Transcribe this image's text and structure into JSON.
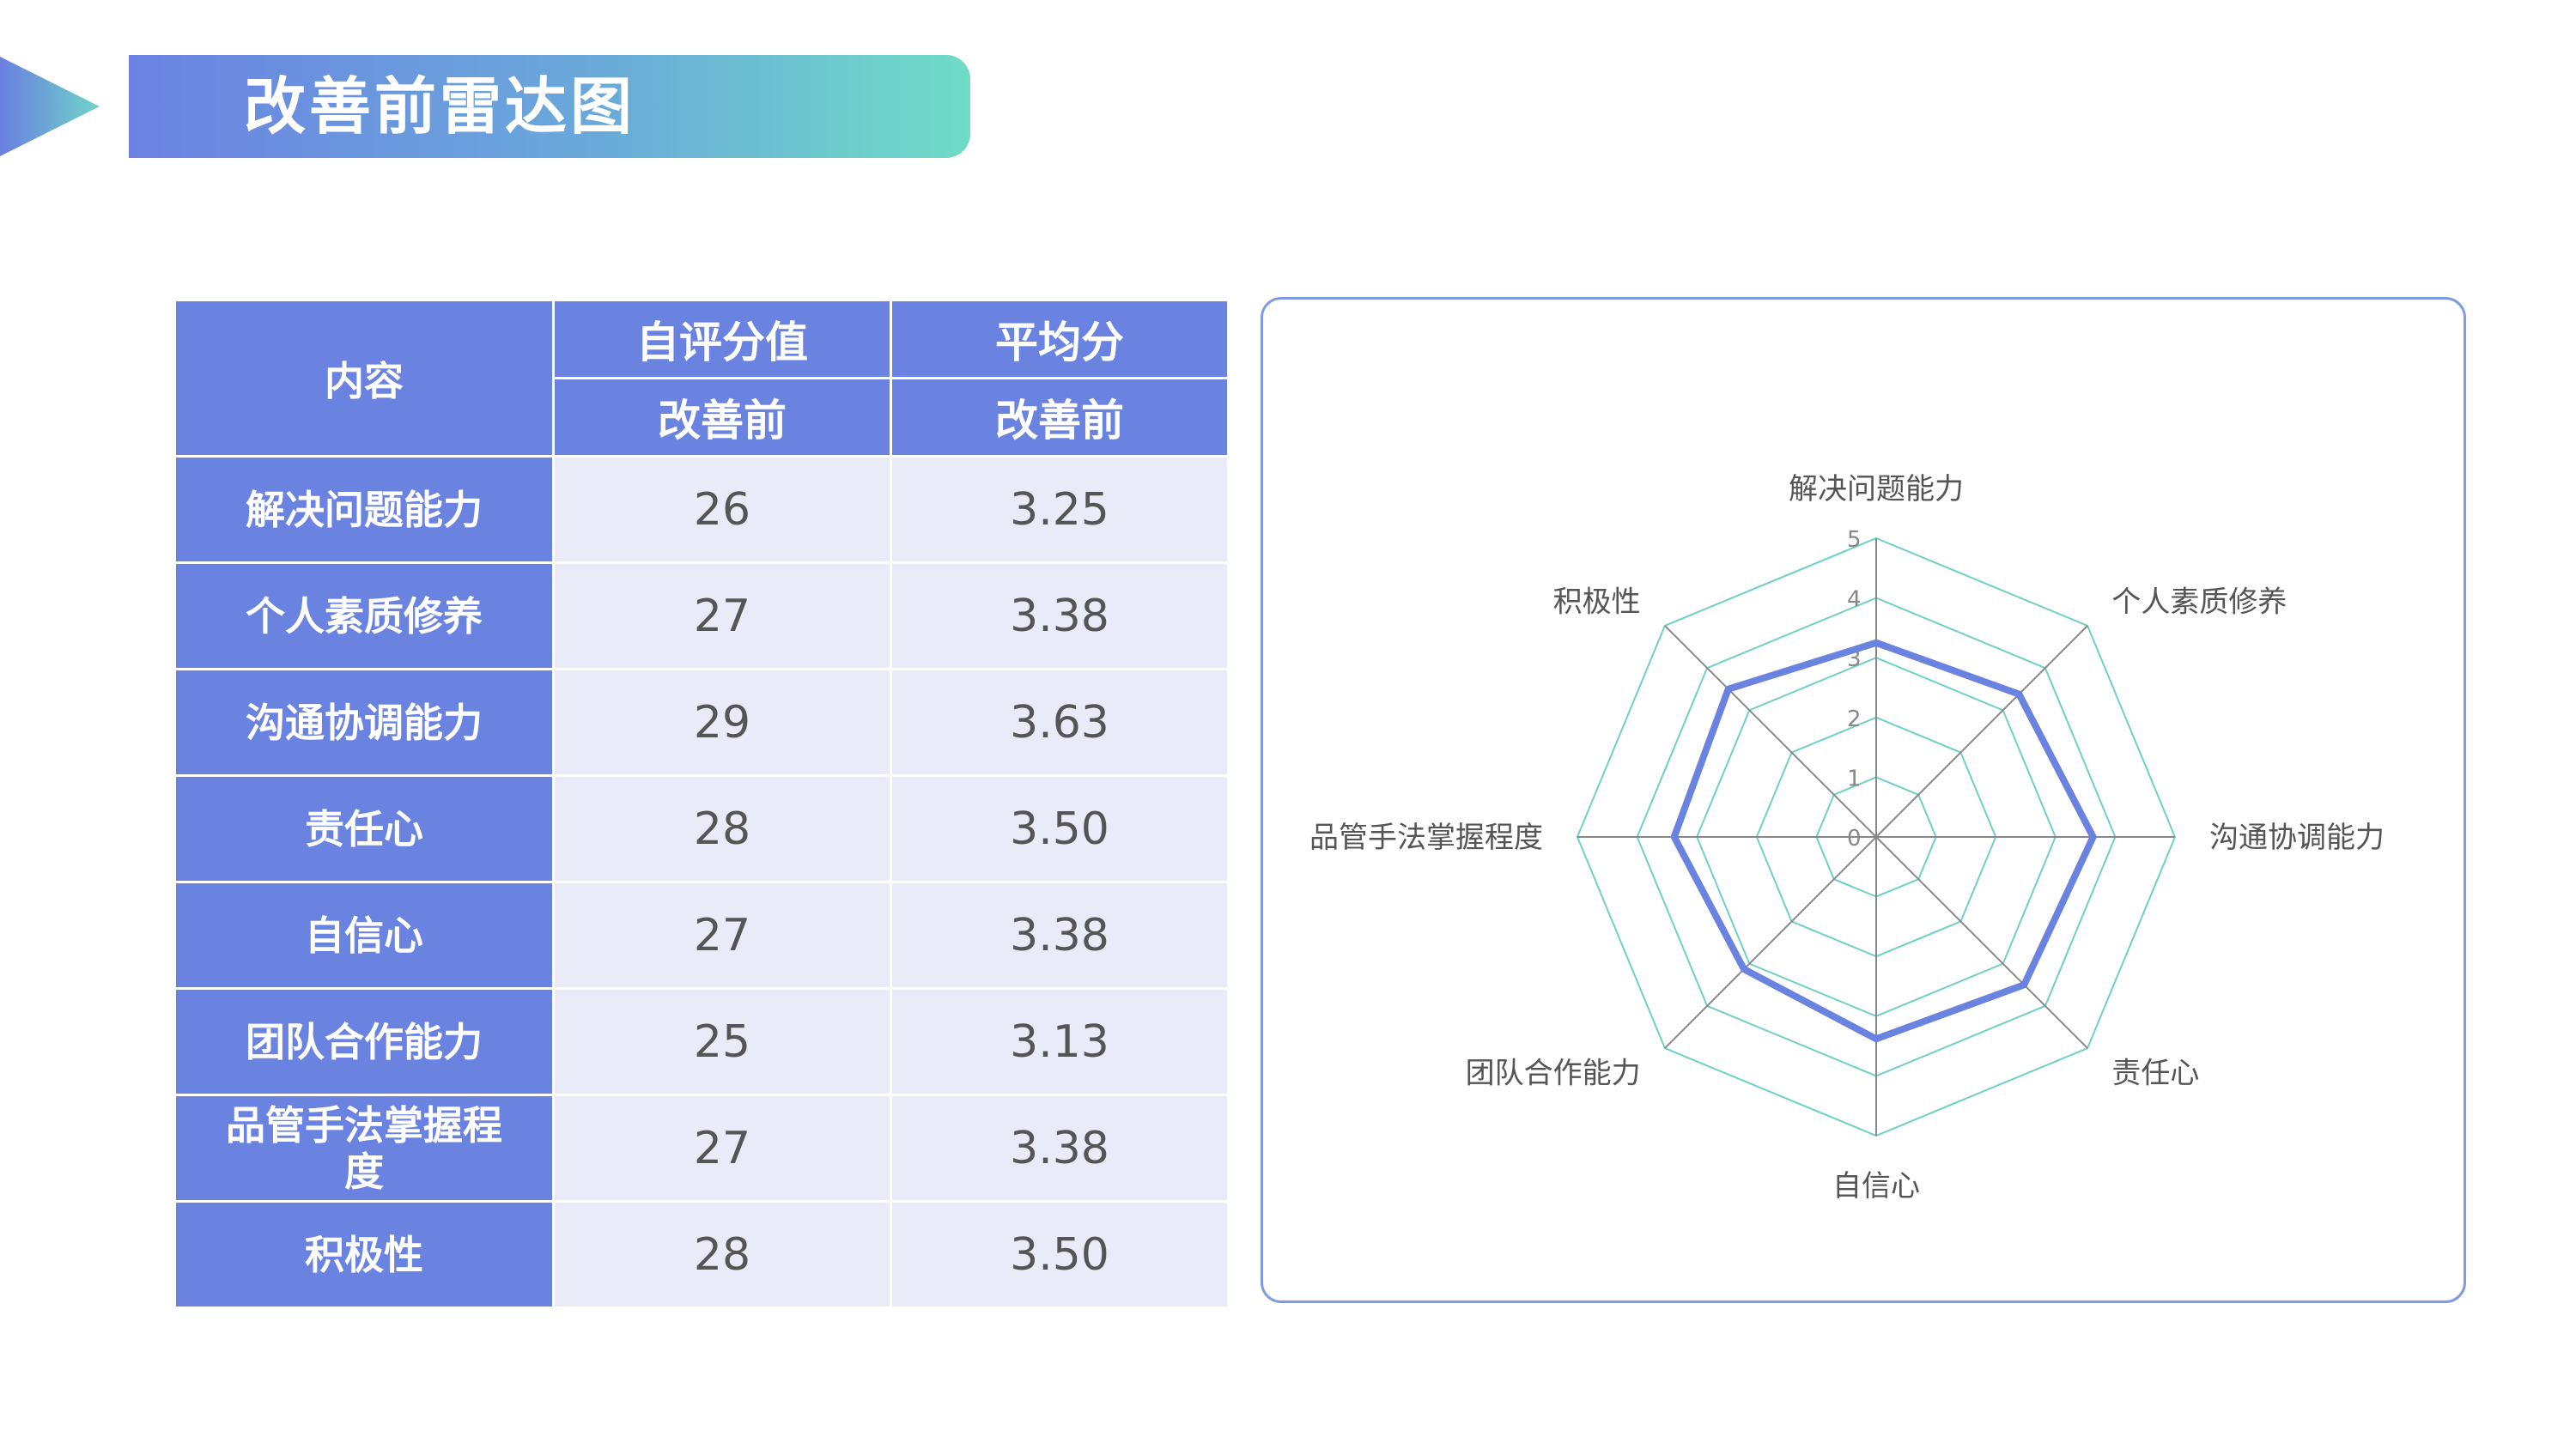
{
  "header": {
    "title": "改善前雷达图"
  },
  "table": {
    "corner_label": "内容",
    "group_headers": [
      "自评分值",
      "平均分"
    ],
    "sub_headers": [
      "改善前",
      "改善前"
    ],
    "rows": [
      {
        "label": "解决问题能力",
        "score": "26",
        "avg": "3.25"
      },
      {
        "label": "个人素质修养",
        "score": "27",
        "avg": "3.38"
      },
      {
        "label": "沟通协调能力",
        "score": "29",
        "avg": "3.63"
      },
      {
        "label": "责任心",
        "score": "28",
        "avg": "3.50"
      },
      {
        "label": "自信心",
        "score": "27",
        "avg": "3.38"
      },
      {
        "label": "团队合作能力",
        "score": "25",
        "avg": "3.13"
      },
      {
        "label": "品管手法掌握程度",
        "score": "27",
        "avg": "3.38"
      },
      {
        "label": "积极性",
        "score": "28",
        "avg": "3.50"
      }
    ]
  },
  "chart_data": {
    "type": "radar",
    "categories": [
      "解决问题能力",
      "个人素质修养",
      "沟通协调能力",
      "责任心",
      "自信心",
      "团队合作能力",
      "品管手法掌握程度",
      "积极性"
    ],
    "series": [
      {
        "values": [
          3.25,
          3.38,
          3.63,
          3.5,
          3.38,
          3.13,
          3.38,
          3.5
        ]
      }
    ],
    "rlim": [
      0,
      5
    ],
    "ticks": [
      "0",
      "1",
      "2",
      "3",
      "4",
      "5"
    ],
    "colors": {
      "series": "#6a82e0",
      "grid": "#6fd0c4",
      "spoke": "#888888",
      "tick": "#888888",
      "label": "#555555"
    }
  }
}
